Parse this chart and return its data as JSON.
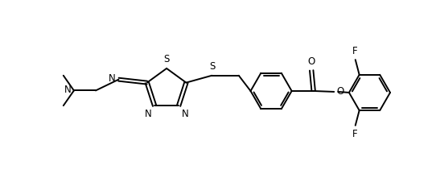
{
  "background_color": "#ffffff",
  "line_color": "#000000",
  "line_width": 1.4,
  "font_size": 8.5,
  "fig_width": 5.42,
  "fig_height": 2.21,
  "dpi": 100,
  "xlim": [
    -1.0,
    10.0
  ],
  "ylim": [
    -1.5,
    2.5
  ]
}
